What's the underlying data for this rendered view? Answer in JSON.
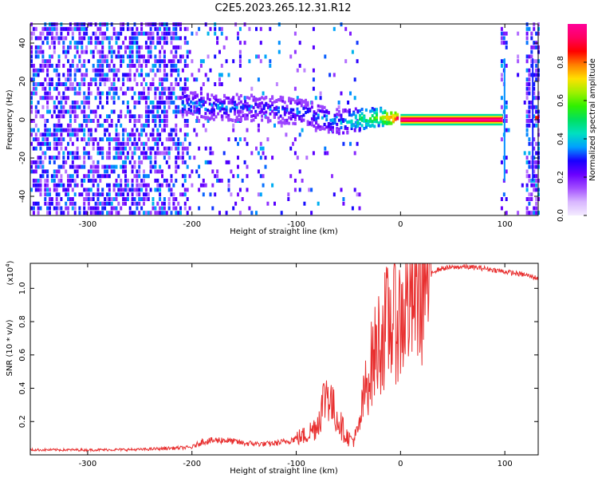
{
  "title": "C2E5.2023.265.12.31.R12",
  "chart_data": [
    {
      "type": "heatmap",
      "xlabel": "Height of straight line (km)",
      "ylabel": "Frequency (Hz)",
      "xlim": [
        -355,
        132
      ],
      "ylim": [
        -50,
        50
      ],
      "xticks": [
        -300,
        -200,
        -100,
        0,
        100
      ],
      "yticks": [
        -40,
        -20,
        0,
        20,
        40
      ],
      "colorbar": {
        "label": "Normalized spectral amplitude",
        "range": [
          0,
          1
        ],
        "ticks": [
          "0.0",
          "0.2",
          "0.4",
          "0.6",
          "0.8"
        ],
        "colormap": [
          "#f4ecff",
          "#d8b6ff",
          "#a24dff",
          "#6a00ff",
          "#1800ff",
          "#00a0ff",
          "#00e0c0",
          "#00e060",
          "#30f000",
          "#a0f000",
          "#ffe000",
          "#ff8000",
          "#ff0000",
          "#ff0060",
          "#ff0099"
        ]
      },
      "tone_track": [
        {
          "x": -210,
          "f": 8,
          "amp": 0.35
        },
        {
          "x": -180,
          "f": 6,
          "amp": 0.35
        },
        {
          "x": -150,
          "f": 6,
          "amp": 0.3
        },
        {
          "x": -120,
          "f": 5,
          "amp": 0.3
        },
        {
          "x": -90,
          "f": 3,
          "amp": 0.35
        },
        {
          "x": -60,
          "f": -2,
          "amp": 0.35
        },
        {
          "x": -40,
          "f": 0,
          "amp": 0.5
        },
        {
          "x": -20,
          "f": 1,
          "amp": 0.6
        },
        {
          "x": 0,
          "f": 0,
          "amp": 1.0
        },
        {
          "x": 98,
          "f": 0,
          "amp": 1.0
        }
      ]
    },
    {
      "type": "line",
      "xlabel": "Height of straight line (km)",
      "ylabel": "SNR (10 * v/v)",
      "yscale_label": "(x10",
      "yscale_exp": "4",
      "xlim": [
        -355,
        132
      ],
      "ylim": [
        0,
        11500
      ],
      "xticks": [
        -300,
        -200,
        -100,
        0,
        100
      ],
      "yticks": [
        "0.2",
        "0.4",
        "0.6",
        "0.8",
        "1.0"
      ],
      "color": "#e83030",
      "series": [
        {
          "x": [
            -355,
            -300,
            -250,
            -220,
            -200,
            -190,
            -170,
            -150,
            -130,
            -120,
            -110,
            -100,
            -90,
            -80,
            -75,
            -70,
            -65,
            -60,
            -55,
            -50,
            -45,
            -40,
            -35,
            -30,
            -25,
            -20,
            -15,
            -10,
            -5,
            0,
            5,
            10,
            15,
            20,
            30,
            40,
            60,
            80,
            100,
            120,
            132
          ],
          "y": [
            300,
            300,
            320,
            400,
            450,
            800,
            900,
            700,
            650,
            700,
            800,
            1000,
            1200,
            1800,
            3000,
            4000,
            2800,
            2200,
            1500,
            1000,
            900,
            1500,
            3500,
            5000,
            6000,
            7000,
            7500,
            8000,
            8500,
            8000,
            9000,
            9500,
            10000,
            10500,
            11000,
            11200,
            11300,
            11200,
            11000,
            10800,
            10600
          ]
        }
      ]
    }
  ]
}
